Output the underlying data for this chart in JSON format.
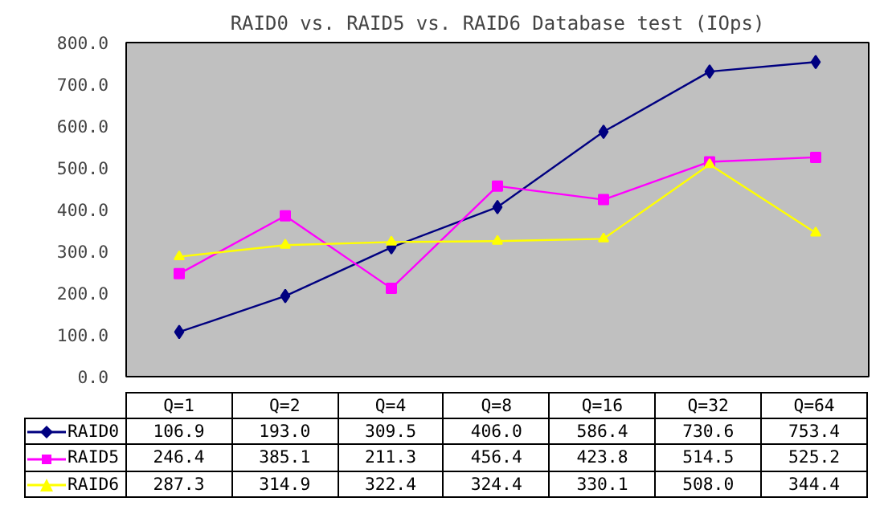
{
  "chart_data": {
    "type": "line",
    "title": "RAID0 vs. RAID5 vs. RAID6 Database test (IOps)",
    "categories": [
      "Q=1",
      "Q=2",
      "Q=4",
      "Q=8",
      "Q=16",
      "Q=32",
      "Q=64"
    ],
    "series": [
      {
        "name": "RAID0",
        "color": "#000080",
        "marker": "diamond",
        "values": [
          106.9,
          193.0,
          309.5,
          406.0,
          586.4,
          730.6,
          753.4
        ],
        "value_labels": [
          "106.9",
          "193.0",
          "309.5",
          "406.0",
          "586.4",
          "730.6",
          "753.4"
        ]
      },
      {
        "name": "RAID5",
        "color": "#ff00ff",
        "marker": "square",
        "values": [
          246.4,
          385.1,
          211.3,
          456.4,
          423.8,
          514.5,
          525.2
        ],
        "value_labels": [
          "246.4",
          "385.1",
          "211.3",
          "456.4",
          "423.8",
          "514.5",
          "525.2"
        ]
      },
      {
        "name": "RAID6",
        "color": "#ffff00",
        "marker": "triangle",
        "values": [
          287.3,
          314.9,
          322.4,
          324.4,
          330.1,
          508.0,
          344.4
        ],
        "value_labels": [
          "287.3",
          "314.9",
          "322.4",
          "324.4",
          "330.1",
          "508.0",
          "344.4"
        ]
      }
    ],
    "ylim": [
      0,
      800
    ],
    "yticks": [
      {
        "value": 0,
        "label": "0.0"
      },
      {
        "value": 100,
        "label": "100.0"
      },
      {
        "value": 200,
        "label": "200.0"
      },
      {
        "value": 300,
        "label": "300.0"
      },
      {
        "value": 400,
        "label": "400.0"
      },
      {
        "value": 500,
        "label": "500.0"
      },
      {
        "value": 600,
        "label": "600.0"
      },
      {
        "value": 700,
        "label": "700.0"
      },
      {
        "value": 800,
        "label": "800.0"
      }
    ],
    "legend": "bottom",
    "grid": false
  }
}
